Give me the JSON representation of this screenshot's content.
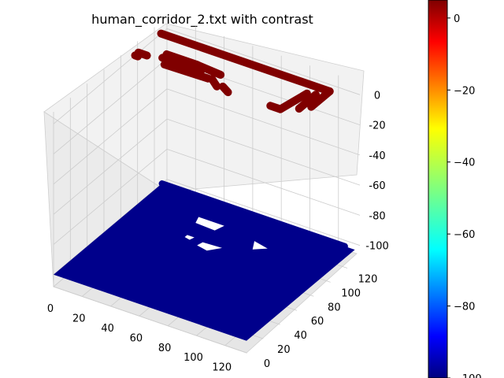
{
  "chart_data": {
    "type": "scatter",
    "subtype": "3d",
    "title": "human_corridor_2.txt with contrast",
    "xlabel": "",
    "ylabel": "",
    "zlabel": "",
    "colormap": "jet",
    "grid": true,
    "x_ticks": [
      0,
      20,
      40,
      60,
      80,
      100,
      120
    ],
    "y_ticks": [
      0,
      20,
      40,
      60,
      80,
      100,
      120
    ],
    "z_ticks": [
      0,
      -20,
      -40,
      -60,
      -80,
      -100
    ],
    "xlim": [
      0,
      135
    ],
    "ylim": [
      0,
      135
    ],
    "zlim": [
      -108,
      8
    ],
    "colorbar": {
      "ticks": [
        0,
        -20,
        -40,
        -60,
        -80,
        -100
      ],
      "range": [
        -100,
        5
      ]
    },
    "series": [
      {
        "z": 0,
        "color": "#800000",
        "strokes": [
          [
            [
              0,
              128
            ],
            [
              118,
              128
            ]
          ],
          [
            [
              118,
              128
            ],
            [
              118,
              106
            ]
          ],
          [
            [
              113,
              120
            ],
            [
              113,
              100
            ]
          ],
          [
            [
              108,
              118
            ],
            [
              104,
              93
            ]
          ],
          [
            [
              104,
              93
            ],
            [
              97,
              93
            ]
          ],
          [
            [
              15,
              109
            ],
            [
              36,
              109
            ]
          ],
          [
            [
              36,
              109
            ],
            [
              54,
              107
            ]
          ],
          [
            [
              15,
              104
            ],
            [
              42,
              104
            ]
          ],
          [
            [
              20,
              98
            ],
            [
              50,
              99
            ]
          ],
          [
            [
              52,
              100
            ],
            [
              59,
              94
            ]
          ],
          [
            [
              62,
              96
            ],
            [
              68,
              92
            ]
          ],
          [
            [
              0,
              101
            ],
            [
              6,
              101
            ]
          ],
          [
            [
              0,
              97
            ],
            [
              2,
              97
            ]
          ]
        ]
      },
      {
        "z": -100,
        "color": "#00008b",
        "fill_polygon": [
          [
            0,
            0
          ],
          [
            135,
            0
          ],
          [
            135,
            129
          ],
          [
            0,
            129
          ]
        ],
        "holes": [
          [
            [
              38,
              108
            ],
            [
              56,
              108
            ],
            [
              54,
              100
            ],
            [
              40,
              101
            ]
          ],
          [
            [
              55,
              84
            ],
            [
              68,
              85
            ],
            [
              62,
              77
            ],
            [
              54,
              79
            ]
          ],
          [
            [
              43,
              86
            ],
            [
              48,
              86
            ],
            [
              47,
              82
            ],
            [
              43,
              83
            ]
          ],
          [
            [
              80,
              103
            ],
            [
              91,
              100
            ],
            [
              84,
              94
            ]
          ]
        ],
        "edge_strokes": [
          [
            [
              0,
              129
            ],
            [
              128,
              129
            ]
          ]
        ]
      }
    ]
  }
}
